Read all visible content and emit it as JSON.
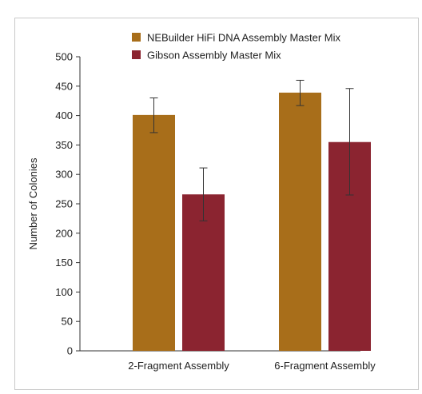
{
  "chart_data": {
    "type": "bar",
    "title": "",
    "xlabel": "",
    "ylabel": "Number of Colonies",
    "ylim": [
      0,
      500
    ],
    "yticks": [
      0,
      50,
      100,
      150,
      200,
      250,
      300,
      350,
      400,
      450,
      500
    ],
    "categories": [
      "2-Fragment Assembly",
      "6-Fragment Assembly"
    ],
    "series": [
      {
        "name": "NEBuilder HiFi DNA Assembly Master Mix",
        "color": "#a86e1a",
        "values": [
          401,
          439
        ],
        "error_low": [
          371,
          417
        ],
        "error_high": [
          430,
          460
        ]
      },
      {
        "name": "Gibson Assembly Master Mix",
        "color": "#8b2430",
        "values": [
          266,
          355
        ],
        "error_low": [
          221,
          265
        ],
        "error_high": [
          311,
          446
        ]
      }
    ],
    "legend_position": "top",
    "grid": false
  }
}
